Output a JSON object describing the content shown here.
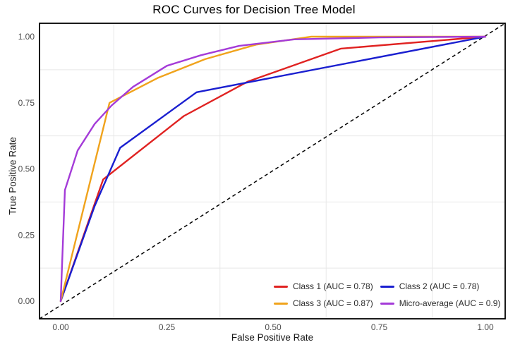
{
  "title": "ROC Curves for Decision Tree Model",
  "chart_data": {
    "type": "line",
    "title": "ROC Curves for Decision Tree Model",
    "xlabel": "False Positive Rate",
    "ylabel": "True Positive Rate",
    "xlim": [
      0,
      1
    ],
    "ylim": [
      0,
      1
    ],
    "x_ticks": [
      "0.00",
      "0.25",
      "0.50",
      "0.75",
      "1.00"
    ],
    "y_ticks": [
      "0.00",
      "0.25",
      "0.50",
      "0.75",
      "1.00"
    ],
    "grid": "light gray gridlines at 0.125, 0.375, 0.625, 0.875 on both axes",
    "legend_position": "bottom-right inside panel, 2 columns",
    "panel_border_color": "#000000",
    "gridline_color": "#e8e8e8",
    "diagonal_reference": {
      "style": "dashed",
      "from": [
        0,
        0
      ],
      "to": [
        1,
        1
      ],
      "color": "#000000"
    },
    "series": [
      {
        "name": "Class 1 (AUC = 0.78)",
        "auc": 0.78,
        "color": "#e02221",
        "points": [
          [
            0,
            0
          ],
          [
            0.1,
            0.46
          ],
          [
            0.29,
            0.7
          ],
          [
            0.44,
            0.83
          ],
          [
            0.66,
            0.955
          ],
          [
            1,
            1
          ]
        ]
      },
      {
        "name": "Class 2 (AUC = 0.78)",
        "auc": 0.78,
        "color": "#1a1fd0",
        "points": [
          [
            0,
            0
          ],
          [
            0.08,
            0.36
          ],
          [
            0.14,
            0.58
          ],
          [
            0.32,
            0.79
          ],
          [
            1,
            1
          ]
        ]
      },
      {
        "name": "Class 3 (AUC = 0.87)",
        "auc": 0.87,
        "color": "#f0a31c",
        "points": [
          [
            0,
            0
          ],
          [
            0.115,
            0.75
          ],
          [
            0.23,
            0.845
          ],
          [
            0.34,
            0.915
          ],
          [
            0.46,
            0.97
          ],
          [
            0.59,
            1.0
          ],
          [
            1,
            1
          ]
        ]
      },
      {
        "name": "Micro-average (AUC = 0.9)",
        "auc": 0.9,
        "color": "#a43bd8",
        "points": [
          [
            0,
            0
          ],
          [
            0.01,
            0.42
          ],
          [
            0.04,
            0.57
          ],
          [
            0.08,
            0.67
          ],
          [
            0.12,
            0.74
          ],
          [
            0.17,
            0.81
          ],
          [
            0.25,
            0.89
          ],
          [
            0.33,
            0.93
          ],
          [
            0.42,
            0.965
          ],
          [
            0.55,
            0.99
          ],
          [
            0.75,
            0.997
          ],
          [
            1,
            1
          ]
        ]
      }
    ]
  }
}
